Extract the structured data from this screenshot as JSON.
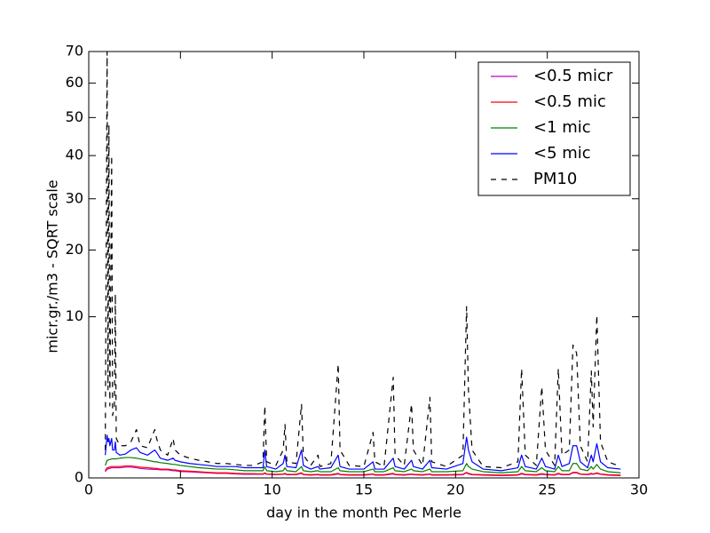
{
  "chart_data": {
    "type": "line",
    "xlabel": "day in the month Pec Merle",
    "ylabel": "micr.gr./m3 - SQRT scale",
    "yscale": "sqrt",
    "xlim": [
      0,
      30
    ],
    "xticks": [
      0,
      5,
      10,
      15,
      20,
      25,
      30
    ],
    "ylim": [
      0,
      70
    ],
    "yticks": [
      0,
      10,
      20,
      30,
      40,
      50,
      60,
      70
    ],
    "legend": "upper right",
    "x": [
      0.9,
      1.0,
      1.05,
      1.1,
      1.15,
      1.25,
      1.3,
      1.4,
      1.45,
      1.5,
      1.7,
      2.0,
      2.3,
      2.6,
      2.8,
      3.2,
      3.6,
      3.7,
      3.9,
      4.3,
      4.6,
      4.7,
      5.0,
      5.5,
      6.0,
      6.5,
      7.0,
      7.5,
      8.0,
      8.5,
      9.0,
      9.5,
      9.6,
      9.7,
      10.2,
      10.6,
      10.7,
      10.8,
      11.3,
      11.6,
      11.7,
      12.1,
      12.5,
      12.6,
      13.2,
      13.6,
      13.7,
      14.2,
      15.0,
      15.5,
      15.6,
      16.1,
      16.6,
      16.7,
      17.2,
      17.6,
      17.7,
      18.2,
      18.6,
      18.7,
      19.5,
      20.4,
      20.6,
      20.7,
      20.9,
      21.5,
      22.5,
      23.4,
      23.6,
      23.8,
      24.4,
      24.7,
      24.9,
      25.4,
      25.6,
      25.8,
      26.2,
      26.4,
      26.6,
      26.8,
      27.2,
      27.4,
      27.5,
      27.7,
      27.9,
      28.3,
      29.0
    ],
    "series": [
      {
        "name": "<0.5 micr",
        "color": "#bf00bf",
        "linestyle": "solid",
        "values": [
          0.015,
          0.03,
          0.03,
          0.035,
          0.035,
          0.04,
          0.04,
          0.04,
          0.04,
          0.04,
          0.04,
          0.045,
          0.045,
          0.04,
          0.035,
          0.03,
          0.028,
          0.028,
          0.025,
          0.025,
          0.02,
          0.02,
          0.016,
          0.014,
          0.012,
          0.01,
          0.008,
          0.008,
          0.006,
          0.005,
          0.005,
          0.005,
          0.008,
          0.005,
          0.004,
          0.005,
          0.006,
          0.004,
          0.004,
          0.008,
          0.004,
          0.003,
          0.004,
          0.003,
          0.003,
          0.006,
          0.004,
          0.003,
          0.003,
          0.005,
          0.003,
          0.003,
          0.006,
          0.004,
          0.003,
          0.005,
          0.004,
          0.003,
          0.005,
          0.003,
          0.003,
          0.004,
          0.01,
          0.006,
          0.004,
          0.003,
          0.002,
          0.003,
          0.006,
          0.004,
          0.003,
          0.005,
          0.004,
          0.003,
          0.006,
          0.004,
          0.004,
          0.01,
          0.01,
          0.005,
          0.004,
          0.006,
          0.005,
          0.008,
          0.005,
          0.003,
          0.002
        ]
      },
      {
        "name": "<0.5 mic",
        "color": "#ff0000",
        "linestyle": "solid",
        "values": [
          0.02,
          0.04,
          0.04,
          0.045,
          0.045,
          0.05,
          0.05,
          0.05,
          0.05,
          0.05,
          0.05,
          0.055,
          0.055,
          0.05,
          0.045,
          0.04,
          0.035,
          0.035,
          0.03,
          0.03,
          0.025,
          0.025,
          0.02,
          0.018,
          0.015,
          0.012,
          0.01,
          0.01,
          0.008,
          0.007,
          0.007,
          0.006,
          0.01,
          0.006,
          0.005,
          0.006,
          0.008,
          0.005,
          0.005,
          0.01,
          0.005,
          0.004,
          0.005,
          0.004,
          0.004,
          0.008,
          0.005,
          0.004,
          0.004,
          0.006,
          0.004,
          0.004,
          0.008,
          0.005,
          0.004,
          0.006,
          0.005,
          0.004,
          0.006,
          0.004,
          0.004,
          0.005,
          0.012,
          0.008,
          0.005,
          0.004,
          0.003,
          0.004,
          0.008,
          0.005,
          0.004,
          0.007,
          0.005,
          0.004,
          0.008,
          0.005,
          0.005,
          0.012,
          0.012,
          0.006,
          0.005,
          0.008,
          0.006,
          0.01,
          0.006,
          0.004,
          0.003
        ]
      },
      {
        "name": "<1 mic",
        "color": "#008000",
        "linestyle": "solid",
        "values": [
          0.06,
          0.12,
          0.12,
          0.13,
          0.13,
          0.14,
          0.14,
          0.14,
          0.14,
          0.14,
          0.15,
          0.16,
          0.16,
          0.15,
          0.14,
          0.12,
          0.1,
          0.1,
          0.09,
          0.08,
          0.07,
          0.07,
          0.06,
          0.05,
          0.04,
          0.035,
          0.03,
          0.03,
          0.025,
          0.02,
          0.02,
          0.02,
          0.05,
          0.02,
          0.015,
          0.02,
          0.04,
          0.02,
          0.015,
          0.05,
          0.02,
          0.015,
          0.02,
          0.015,
          0.015,
          0.04,
          0.02,
          0.015,
          0.015,
          0.03,
          0.015,
          0.015,
          0.04,
          0.02,
          0.015,
          0.03,
          0.02,
          0.015,
          0.03,
          0.015,
          0.015,
          0.02,
          0.08,
          0.05,
          0.03,
          0.015,
          0.01,
          0.015,
          0.05,
          0.02,
          0.015,
          0.04,
          0.02,
          0.015,
          0.05,
          0.02,
          0.02,
          0.08,
          0.08,
          0.03,
          0.02,
          0.05,
          0.03,
          0.07,
          0.03,
          0.015,
          0.01
        ]
      },
      {
        "name": "<5 mic",
        "color": "#0000ff",
        "linestyle": "solid",
        "values": [
          0.2,
          0.7,
          0.5,
          0.6,
          0.4,
          0.6,
          0.3,
          0.3,
          0.5,
          0.25,
          0.2,
          0.22,
          0.3,
          0.35,
          0.25,
          0.2,
          0.3,
          0.25,
          0.15,
          0.12,
          0.15,
          0.12,
          0.1,
          0.08,
          0.07,
          0.06,
          0.05,
          0.05,
          0.05,
          0.04,
          0.04,
          0.04,
          0.3,
          0.05,
          0.03,
          0.08,
          0.2,
          0.05,
          0.04,
          0.3,
          0.06,
          0.03,
          0.05,
          0.03,
          0.04,
          0.2,
          0.05,
          0.03,
          0.03,
          0.1,
          0.03,
          0.03,
          0.15,
          0.05,
          0.03,
          0.12,
          0.05,
          0.03,
          0.12,
          0.04,
          0.03,
          0.08,
          0.64,
          0.3,
          0.1,
          0.03,
          0.02,
          0.04,
          0.2,
          0.05,
          0.03,
          0.15,
          0.05,
          0.03,
          0.2,
          0.05,
          0.08,
          0.4,
          0.4,
          0.1,
          0.04,
          0.2,
          0.1,
          0.45,
          0.1,
          0.04,
          0.03
        ]
      },
      {
        "name": "PM10",
        "color": "#000000",
        "linestyle": "dashed",
        "values": [
          0.3,
          70,
          3,
          48,
          2,
          40,
          1.5,
          2,
          13,
          0.6,
          0.4,
          0.4,
          0.5,
          0.9,
          0.4,
          0.35,
          0.9,
          0.6,
          0.3,
          0.2,
          0.6,
          0.3,
          0.2,
          0.15,
          0.12,
          0.1,
          0.08,
          0.08,
          0.07,
          0.06,
          0.06,
          0.1,
          2.0,
          0.1,
          0.06,
          0.3,
          1.1,
          0.1,
          0.08,
          2.1,
          0.2,
          0.06,
          0.2,
          0.05,
          0.08,
          5.0,
          0.3,
          0.06,
          0.05,
          0.8,
          0.1,
          0.05,
          3.9,
          0.2,
          0.06,
          2.1,
          0.3,
          0.06,
          2.5,
          0.1,
          0.05,
          0.2,
          11.3,
          3,
          0.3,
          0.05,
          0.04,
          0.1,
          4.6,
          0.2,
          0.06,
          3.2,
          0.3,
          0.06,
          4.6,
          0.2,
          0.3,
          6.8,
          6.0,
          0.4,
          0.1,
          4.4,
          1,
          10.2,
          0.5,
          0.1,
          0.05
        ]
      }
    ]
  }
}
